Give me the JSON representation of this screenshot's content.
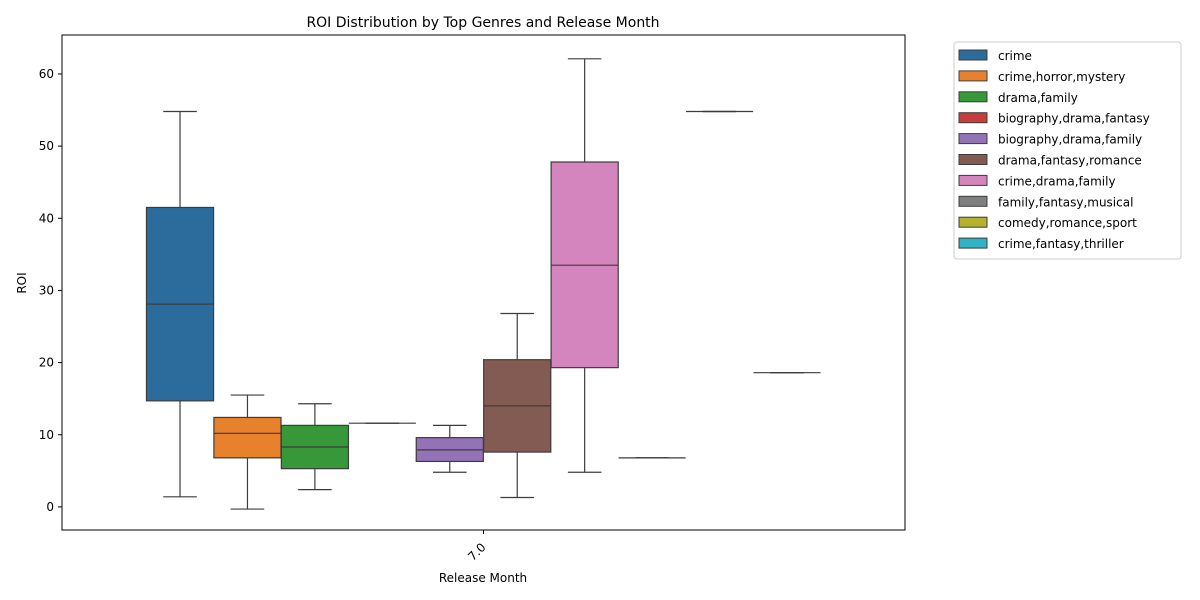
{
  "chart_data": {
    "type": "box",
    "title": "ROI Distribution by Top Genres and Release Month",
    "xlabel": "Release Month",
    "ylabel": "ROI",
    "categories": [
      "7.0"
    ],
    "ylim": [
      -3.2,
      65.4
    ],
    "yticks": [
      0,
      10,
      20,
      30,
      40,
      50,
      60
    ],
    "grid": false,
    "legend_position": "outside-top-right",
    "series": [
      {
        "name": "crime",
        "color": "#2b6c9d",
        "whisker_low": 1.4,
        "q1": 14.7,
        "median": 28.1,
        "q3": 41.5,
        "whisker_high": 54.8
      },
      {
        "name": "crime,horror,mystery",
        "color": "#e8812b",
        "whisker_low": -0.3,
        "q1": 6.8,
        "median": 10.2,
        "q3": 12.4,
        "whisker_high": 15.5
      },
      {
        "name": "drama,family",
        "color": "#37983a",
        "whisker_low": 2.4,
        "q1": 5.3,
        "median": 8.3,
        "q3": 11.3,
        "whisker_high": 14.3
      },
      {
        "name": "biography,drama,fantasy",
        "color": "#c73d3c",
        "whisker_low": 11.6,
        "q1": 11.6,
        "median": 11.6,
        "q3": 11.6,
        "whisker_high": 11.6
      },
      {
        "name": "biography,drama,family",
        "color": "#9372b6",
        "whisker_low": 4.8,
        "q1": 6.3,
        "median": 7.9,
        "q3": 9.6,
        "whisker_high": 11.3
      },
      {
        "name": "drama,fantasy,romance",
        "color": "#845b52",
        "whisker_low": 1.3,
        "q1": 7.6,
        "median": 14.0,
        "q3": 20.4,
        "whisker_high": 26.8
      },
      {
        "name": "crime,drama,family",
        "color": "#d585bd",
        "whisker_low": 4.8,
        "q1": 19.3,
        "median": 33.5,
        "q3": 47.8,
        "whisker_high": 62.1
      },
      {
        "name": "family,fantasy,musical",
        "color": "#7f7f7f",
        "whisker_low": 6.8,
        "q1": 6.8,
        "median": 6.8,
        "q3": 6.8,
        "whisker_high": 6.8
      },
      {
        "name": "comedy,romance,sport",
        "color": "#b4b22f",
        "whisker_low": 54.8,
        "q1": 54.8,
        "median": 54.8,
        "q3": 54.8,
        "whisker_high": 54.8
      },
      {
        "name": "crime,fantasy,thriller",
        "color": "#2fb4c5",
        "whisker_low": 18.6,
        "q1": 18.6,
        "median": 18.6,
        "q3": 18.6,
        "whisker_high": 18.6
      }
    ]
  }
}
